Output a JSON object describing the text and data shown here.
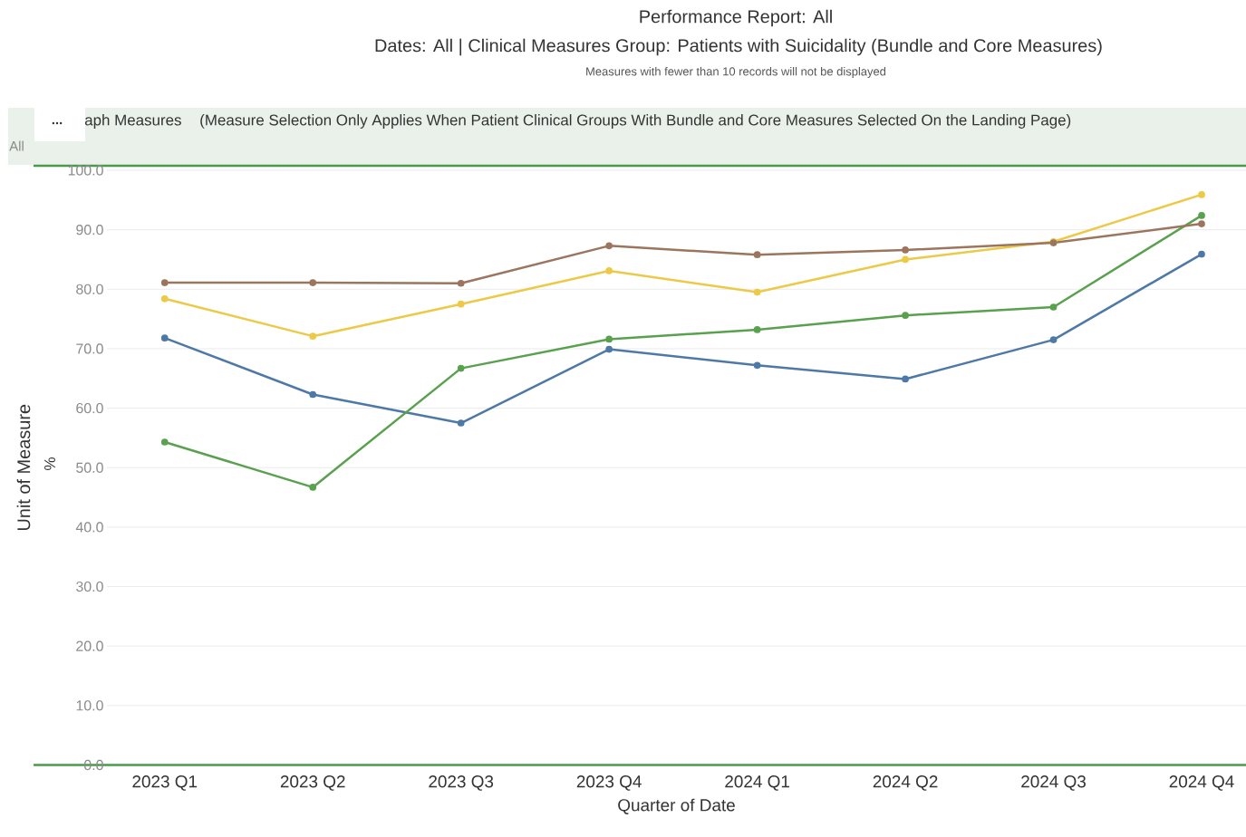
{
  "chart_data": {
    "type": "line",
    "title": "Performance Report: All",
    "subtitle": "Dates: All | Clinical Measures Group: Patients with Suicidality (Bundle and Core Measures)",
    "xlabel": "Quarter of Date",
    "ylabel": "Unit of Measure",
    "annotations": [
      "Measures with fewer than 10 records will not be displayed",
      "...",
      "aph Measures",
      "(Measure Selection Only Applies When Patient Clinical Groups With Bundle and Core Measures Selected On the Landing Page)",
      "All",
      "%"
    ],
    "categories": [
      "2023 Q1",
      "2023 Q2",
      "2023 Q3",
      "2023 Q4",
      "2024 Q1",
      "2024 Q2",
      "2024 Q3",
      "2024 Q4"
    ],
    "series": [
      {
        "color": "#4e79a7",
        "values": [
          71.8,
          62.3,
          57.5,
          69.9,
          67.2,
          64.9,
          71.5,
          85.9
        ]
      },
      {
        "color": "#59a14f",
        "values": [
          54.3,
          46.7,
          66.7,
          71.6,
          73.2,
          75.6,
          77.0,
          92.4
        ]
      },
      {
        "color": "#edc948",
        "values": [
          78.4,
          72.1,
          77.5,
          83.1,
          79.5,
          85.0,
          88.0,
          95.9
        ]
      },
      {
        "color": "#9c755f",
        "values": [
          81.1,
          81.1,
          81.0,
          87.3,
          85.8,
          86.6,
          87.8,
          91.0
        ]
      }
    ],
    "ylim": [
      0,
      100
    ],
    "yticks": [
      {
        "value": 0,
        "label": "0.0"
      },
      {
        "value": 10,
        "label": "10.0"
      },
      {
        "value": 20,
        "label": "20.0"
      },
      {
        "value": 30,
        "label": "30.0"
      },
      {
        "value": 40,
        "label": "40.0"
      },
      {
        "value": 50,
        "label": "50.0"
      },
      {
        "value": 60,
        "label": "60.0"
      },
      {
        "value": 70,
        "label": "70.0"
      },
      {
        "value": 80,
        "label": "80.0"
      },
      {
        "value": 90,
        "label": "90.0"
      },
      {
        "value": 100,
        "label": "100.0"
      }
    ],
    "grid": "y",
    "marker": "circle",
    "line_style": "solid"
  }
}
